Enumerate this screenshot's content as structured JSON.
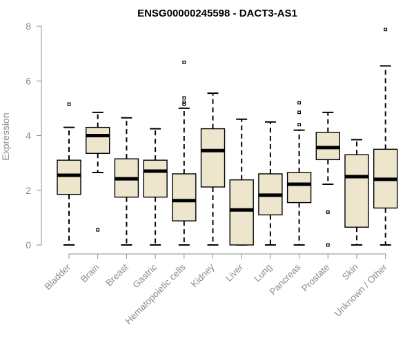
{
  "chart_data": {
    "type": "boxplot",
    "title": "ENSG00000245598 - DACT3-AS1",
    "xlabel": "",
    "ylabel": "Expression",
    "ylim": [
      0,
      8
    ],
    "yticks": [
      0,
      2,
      4,
      6,
      8
    ],
    "categories": [
      "Bladder",
      "Brain",
      "Breast",
      "Gastric",
      "Hematopoietic cells",
      "Kidney",
      "Liver",
      "Lung",
      "Pancreas",
      "Prostate",
      "Skin",
      "Unknown / Other"
    ],
    "box_color": "#ede6cc",
    "boxes": [
      {
        "name": "Bladder",
        "whisker_low": 0,
        "q1": 1.85,
        "median": 2.55,
        "q3": 3.1,
        "whisker_high": 4.3,
        "outliers": [
          5.15
        ]
      },
      {
        "name": "Brain",
        "whisker_low": 2.65,
        "q1": 3.35,
        "median": 4.0,
        "q3": 4.3,
        "whisker_high": 4.85,
        "outliers": [
          0.55
        ]
      },
      {
        "name": "Breast",
        "whisker_low": 0,
        "q1": 1.75,
        "median": 2.42,
        "q3": 3.15,
        "whisker_high": 4.65,
        "outliers": []
      },
      {
        "name": "Gastric",
        "whisker_low": 0,
        "q1": 1.75,
        "median": 2.7,
        "q3": 3.1,
        "whisker_high": 4.25,
        "outliers": []
      },
      {
        "name": "Hematopoietic cells",
        "whisker_low": 0,
        "q1": 0.88,
        "median": 1.62,
        "q3": 2.6,
        "whisker_high": 5.0,
        "outliers": [
          5.15,
          5.22,
          5.38,
          6.68
        ]
      },
      {
        "name": "Kidney",
        "whisker_low": 0,
        "q1": 2.12,
        "median": 3.45,
        "q3": 4.25,
        "whisker_high": 5.55,
        "outliers": []
      },
      {
        "name": "Liver",
        "whisker_low": 0,
        "q1": 0,
        "median": 1.28,
        "q3": 2.38,
        "whisker_high": 4.6,
        "outliers": []
      },
      {
        "name": "Lung",
        "whisker_low": 0,
        "q1": 1.1,
        "median": 1.82,
        "q3": 2.6,
        "whisker_high": 4.5,
        "outliers": []
      },
      {
        "name": "Pancreas",
        "whisker_low": 0,
        "q1": 1.55,
        "median": 2.22,
        "q3": 2.65,
        "whisker_high": 4.2,
        "outliers": [
          4.4,
          4.85,
          5.2
        ]
      },
      {
        "name": "Prostate",
        "whisker_low": 2.22,
        "q1": 3.12,
        "median": 3.56,
        "q3": 4.12,
        "whisker_high": 4.85,
        "outliers": [
          1.2,
          0
        ]
      },
      {
        "name": "Skin",
        "whisker_low": 0,
        "q1": 0.65,
        "median": 2.5,
        "q3": 3.3,
        "whisker_high": 3.85,
        "outliers": []
      },
      {
        "name": "Unknown / Other",
        "whisker_low": 0,
        "q1": 1.35,
        "median": 2.4,
        "q3": 3.5,
        "whisker_high": 6.55,
        "outliers": [
          7.88
        ]
      }
    ],
    "grid": false
  }
}
